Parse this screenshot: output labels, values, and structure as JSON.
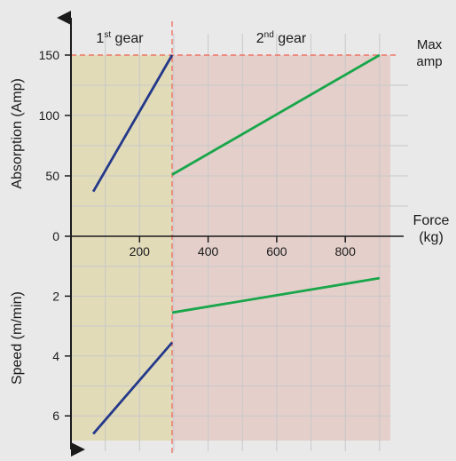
{
  "chart_data": [
    {
      "type": "line",
      "ylabel": "Absorption (Amp)",
      "ylim": [
        0,
        150
      ],
      "yticks": [
        0,
        50,
        100,
        150
      ],
      "series": [
        {
          "color": "#24388a",
          "x": [
            65,
            295
          ],
          "y": [
            37,
            150
          ]
        },
        {
          "color": "#19a64a",
          "x": [
            295,
            900
          ],
          "y": [
            51,
            150
          ]
        }
      ],
      "max_line": {
        "value": 150,
        "color": "#f06050",
        "label_top": "Max",
        "label_bottom": "amp"
      }
    },
    {
      "type": "line",
      "ylabel": "Speed (m/min)",
      "ylim": [
        0,
        7
      ],
      "y_inverted": true,
      "yticks": [
        2,
        4,
        6
      ],
      "series": [
        {
          "color": "#24388a",
          "x": [
            65,
            295
          ],
          "y": [
            6.6,
            3.55
          ]
        },
        {
          "color": "#19a64a",
          "x": [
            295,
            900
          ],
          "y": [
            2.55,
            1.4
          ]
        }
      ]
    }
  ],
  "shared_x": {
    "label_top": "Force",
    "label_bottom": "(kg)",
    "xlim": [
      0,
      950
    ],
    "ticks": [
      200,
      400,
      600,
      800
    ],
    "tick_labels": [
      "200",
      "400",
      "600",
      "800"
    ],
    "gear_change_at": 295
  },
  "regions": {
    "gear1": {
      "label_main": "1",
      "label_sup": "st",
      "label_rest": " gear",
      "color": "#e1dbb8"
    },
    "gear2": {
      "label_main": "2",
      "label_sup": "nd",
      "label_rest": " gear",
      "color": "#e4cfcb"
    }
  },
  "zero_label": "0"
}
